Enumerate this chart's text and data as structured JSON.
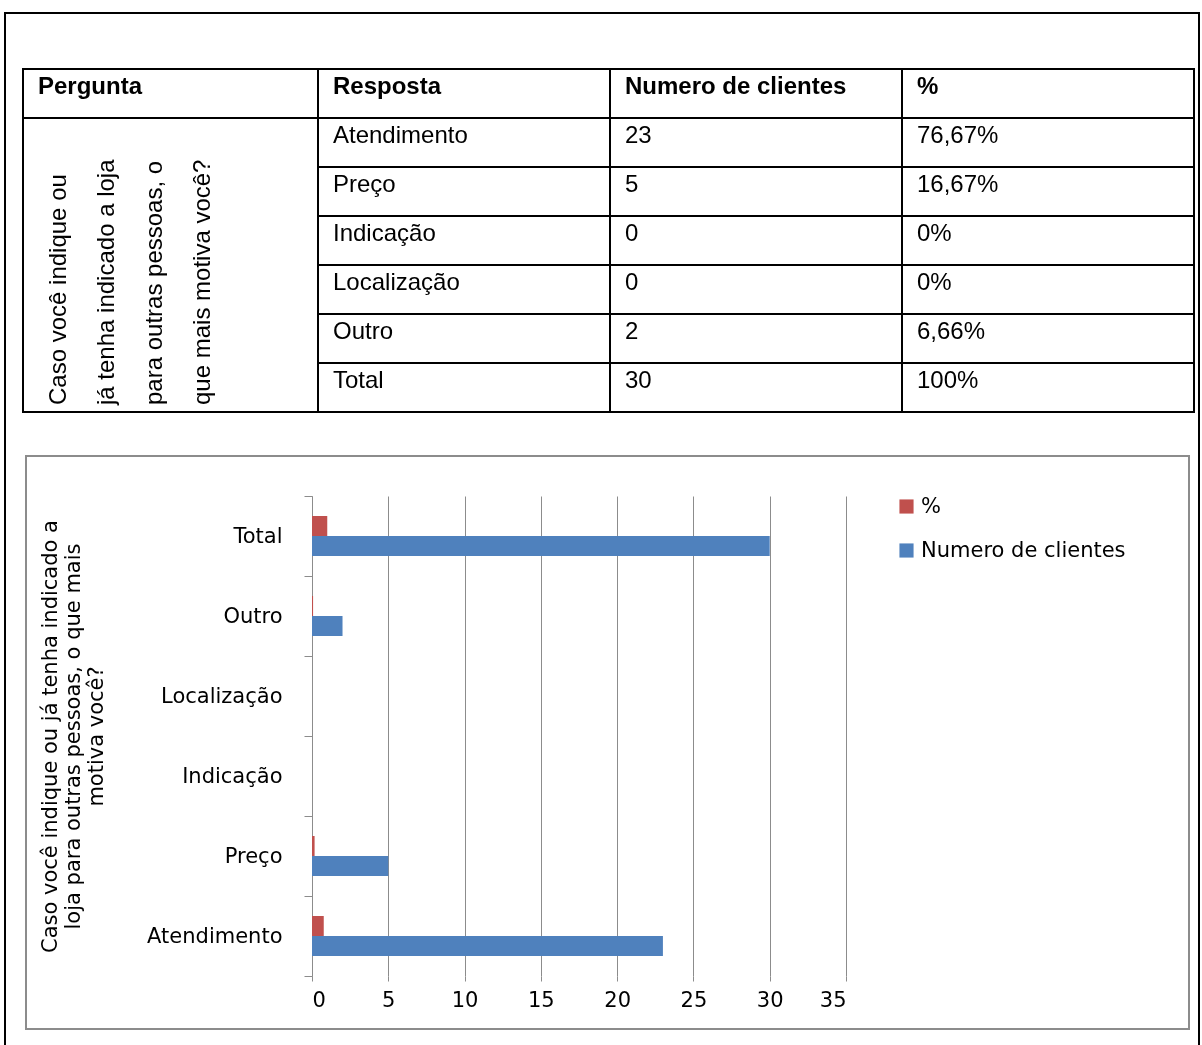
{
  "chart_data": [
    {
      "type": "other",
      "annotations": [
        "Pergunta",
        "Resposta",
        "Numero de clientes",
        "%",
        "Caso você indique ou já tenha indicado a loja para outras pessoas, o que mais motiva você?",
        "Atendimento",
        "23",
        "76,67%",
        "Preço",
        "5",
        "16,67%",
        "Indicação",
        "0",
        "0%",
        "Localização",
        "0",
        "0%",
        "Outro",
        "2",
        "6,66%",
        "Total",
        "30",
        "100%"
      ]
    },
    {
      "type": "bar",
      "orientation": "horizontal",
      "categories": [
        "Total",
        "Outro",
        "Localização",
        "Indicação",
        "Preço",
        "Atendimento"
      ],
      "ylabel": "Caso você indique ou já tenha indicado a loja para outras pessoas, o que mais motiva você?",
      "series": [
        {
          "name": "%",
          "color": "#c0504d",
          "values": [
            1,
            0.07,
            0,
            0,
            0.17,
            0.77
          ]
        },
        {
          "name": "Numero de clientes",
          "color": "#4f81bd",
          "values": [
            30,
            2,
            0,
            0,
            5,
            23
          ]
        }
      ],
      "xlim": [
        0,
        35
      ],
      "xticks": [
        0,
        5,
        10,
        15,
        20,
        25,
        30,
        35
      ],
      "grid": "x",
      "legend": "right"
    }
  ]
}
